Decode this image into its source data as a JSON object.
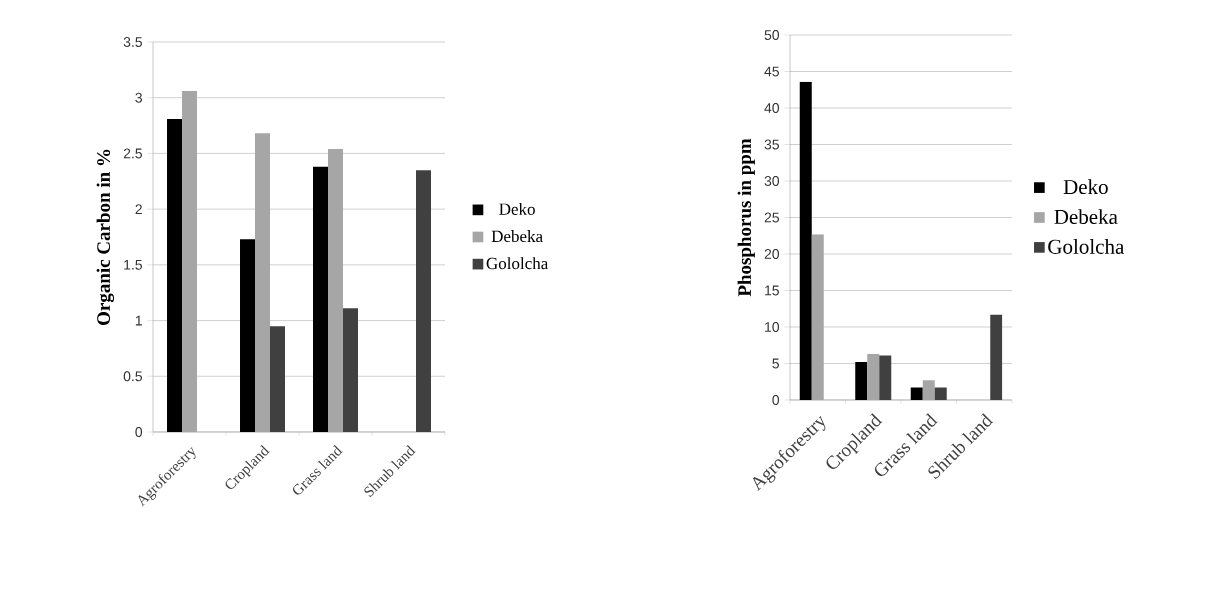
{
  "chart_data": [
    {
      "type": "bar",
      "ylabel": "**Organic** Carbon in %",
      "categories": [
        "Agroforestry",
        "Cropland",
        "Grass land",
        "Shrub land"
      ],
      "series": [
        {
          "name": "Deko",
          "color": "#000000",
          "values": [
            2.81,
            1.73,
            2.38,
            null
          ]
        },
        {
          "name": "Debeka",
          "color": "#a6a6a6",
          "values": [
            3.06,
            2.68,
            2.54,
            null
          ]
        },
        {
          "name": "Gololcha",
          "color": "#404040",
          "values": [
            null,
            0.95,
            1.11,
            2.35
          ]
        }
      ],
      "ylim": [
        0,
        3.5
      ],
      "yticks": [
        0,
        0.5,
        1,
        1.5,
        2,
        2.5,
        3,
        3.5
      ],
      "grid": "y",
      "legend": "right"
    },
    {
      "type": "bar",
      "ylabel": "Phosphorus in ppm",
      "categories": [
        "Agroforestry",
        "Cropland",
        "Grass land",
        "Shrub land"
      ],
      "series": [
        {
          "name": "Deko",
          "color": "#000000",
          "values": [
            43.6,
            5.2,
            1.7,
            null
          ]
        },
        {
          "name": "Debeka",
          "color": "#a6a6a6",
          "values": [
            22.7,
            6.3,
            2.7,
            null
          ]
        },
        {
          "name": "Gololcha",
          "color": "#404040",
          "values": [
            null,
            6.1,
            1.7,
            11.7
          ]
        }
      ],
      "ylim": [
        0,
        50
      ],
      "yticks": [
        0,
        5,
        10,
        15,
        20,
        25,
        30,
        35,
        40,
        45,
        50
      ],
      "grid": "y",
      "legend": "right"
    }
  ]
}
